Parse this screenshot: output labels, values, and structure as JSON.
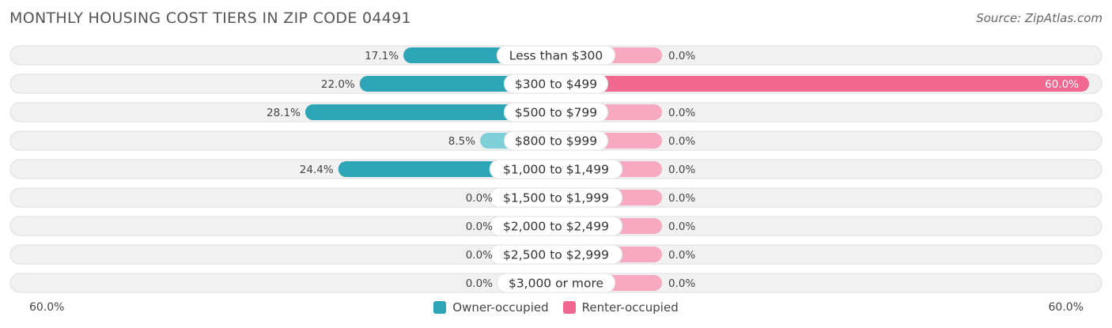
{
  "title": "MONTHLY HOUSING COST TIERS IN ZIP CODE 04491",
  "source": "Source: ZipAtlas.com",
  "colors": {
    "owner": "#2da5b6",
    "owner_light": "#7fcfd9",
    "renter": "#f06890",
    "renter_light": "#f7a9c2"
  },
  "legend": {
    "owner_label": "Owner-occupied",
    "renter_label": "Renter-occupied"
  },
  "axis": {
    "left_label": "60.0%",
    "right_label": "60.0%"
  },
  "chart_data": {
    "type": "bar",
    "orientation": "diverging-horizontal",
    "categories": [
      "Less than $300",
      "$300 to $499",
      "$500 to $799",
      "$800 to $999",
      "$1,000 to $1,499",
      "$1,500 to $1,999",
      "$2,000 to $2,499",
      "$2,500 to $2,999",
      "$3,000 or more"
    ],
    "series": [
      {
        "name": "Owner-occupied",
        "values": [
          17.1,
          22.0,
          28.1,
          8.5,
          24.4,
          0.0,
          0.0,
          0.0,
          0.0
        ],
        "labels": [
          "17.1%",
          "22.0%",
          "28.1%",
          "8.5%",
          "24.4%",
          "0.0%",
          "0.0%",
          "0.0%",
          "0.0%"
        ]
      },
      {
        "name": "Renter-occupied",
        "values": [
          0.0,
          60.0,
          0.0,
          0.0,
          0.0,
          0.0,
          0.0,
          0.0,
          0.0
        ],
        "labels": [
          "0.0%",
          "60.0%",
          "0.0%",
          "0.0%",
          "0.0%",
          "0.0%",
          "0.0%",
          "0.0%",
          "0.0%"
        ]
      }
    ],
    "xlim": [
      -60,
      60
    ],
    "legend_position": "bottom-center"
  }
}
